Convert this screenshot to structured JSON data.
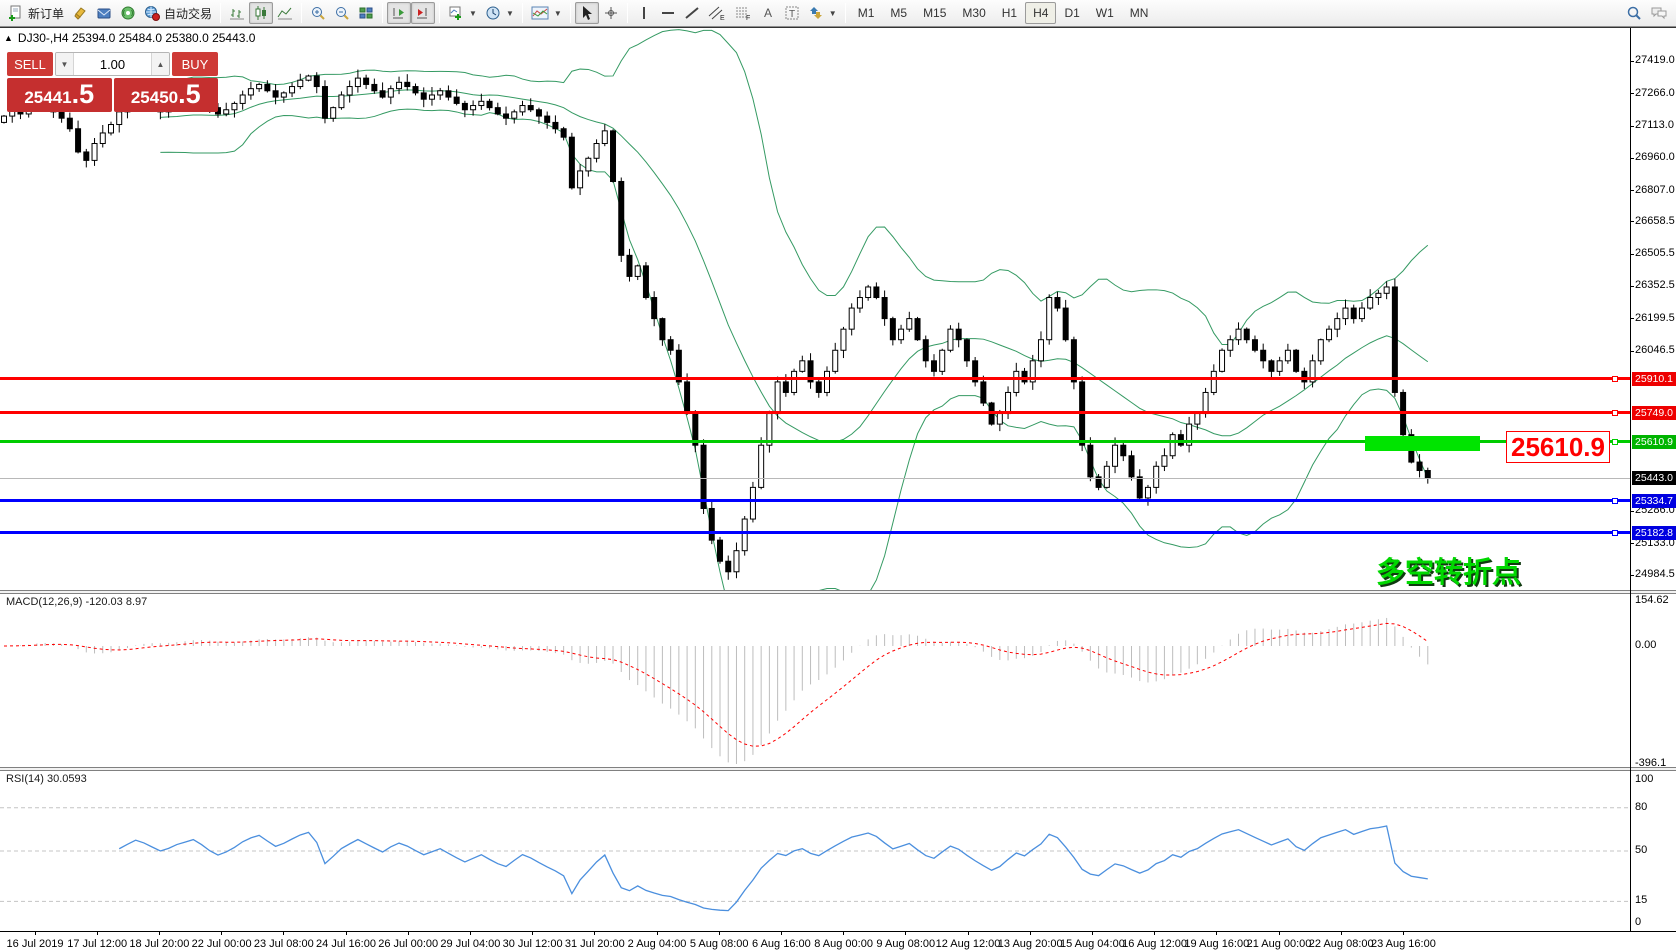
{
  "toolbar": {
    "new_order_label": "新订单",
    "autotrade_label": "自动交易",
    "timeframes": [
      "M1",
      "M5",
      "M15",
      "M30",
      "H1",
      "H4",
      "D1",
      "W1",
      "MN"
    ],
    "active_timeframe": "H4"
  },
  "chart": {
    "title": "DJ30-,H4  25394.0 25484.0 25380.0 25443.0",
    "symbol": "DJ30-",
    "period": "H4"
  },
  "trade_panel": {
    "sell_label": "SELL",
    "buy_label": "BUY",
    "lot": "1.00",
    "sell_price_main": "25441",
    "sell_price_frac": ".5",
    "buy_price_main": "25450",
    "buy_price_frac": ".5"
  },
  "annotations": {
    "level_callout": "25610.9",
    "pivot_text": "多空转折点"
  },
  "indicators": {
    "macd_header": "MACD(12,26,9) -120.03 8.97",
    "rsi_header": "RSI(14) 30.0593"
  },
  "chart_data": {
    "type": "candlestick",
    "symbol": "DJ30-",
    "period": "H4",
    "ohlc_display": {
      "open": 25394.0,
      "high": 25484.0,
      "low": 25380.0,
      "close": 25443.0
    },
    "bid": 25441.5,
    "ask": 25450.5,
    "closes": [
      27160,
      27190,
      27170,
      27210,
      27240,
      27220,
      27180,
      27150,
      27100,
      26990,
      26950,
      27030,
      27080,
      27120,
      27180,
      27220,
      27260,
      27240,
      27210,
      27180,
      27200,
      27230,
      27250,
      27270,
      27240,
      27200,
      27170,
      27190,
      27220,
      27260,
      27290,
      27310,
      27280,
      27250,
      27270,
      27300,
      27330,
      27350,
      27300,
      27150,
      27200,
      27260,
      27300,
      27340,
      27310,
      27280,
      27250,
      27290,
      27320,
      27300,
      27270,
      27240,
      27260,
      27280,
      27250,
      27220,
      27190,
      27210,
      27230,
      27200,
      27170,
      27150,
      27180,
      27210,
      27190,
      27160,
      27130,
      27100,
      27060,
      26820,
      26900,
      26960,
      27030,
      27090,
      26850,
      26500,
      26400,
      26450,
      26300,
      26200,
      26100,
      26050,
      25900,
      25750,
      25600,
      25300,
      25150,
      25050,
      25000,
      25100,
      25250,
      25400,
      25600,
      25750,
      25900,
      25850,
      25950,
      26000,
      25900,
      25850,
      25950,
      26050,
      26150,
      26250,
      26300,
      26350,
      26300,
      26200,
      26100,
      26150,
      26200,
      26100,
      26000,
      25950,
      26050,
      26150,
      26100,
      26000,
      25900,
      25800,
      25700,
      25750,
      25850,
      25950,
      25900,
      26000,
      26100,
      26300,
      26250,
      26100,
      25900,
      25600,
      25450,
      25400,
      25500,
      25600,
      25550,
      25450,
      25350,
      25400,
      25500,
      25550,
      25650,
      25600,
      25700,
      25750,
      25850,
      25950,
      26050,
      26100,
      26150,
      26100,
      26050,
      26000,
      25950,
      26000,
      26050,
      25950,
      25900,
      26000,
      26100,
      26150,
      26200,
      26250,
      26200,
      26250,
      26300,
      26320,
      26350,
      25850,
      25650,
      25520,
      25480,
      25443
    ],
    "bollinger": {
      "period": 20,
      "deviation": 2,
      "color": "#359a63"
    },
    "macd": {
      "fast": 12,
      "slow": 26,
      "signal": 9,
      "value": -120.03,
      "signal_value": 8.97,
      "axis_labels": [
        "154.62",
        "0.00",
        "-396.1"
      ]
    },
    "rsi": {
      "period": 14,
      "value": 30.0593,
      "axis_labels": [
        "100",
        "80",
        "50",
        "15",
        "0"
      ],
      "levels": [
        80,
        50,
        15
      ]
    },
    "price_axis_labels": [
      27419.0,
      27266.0,
      27113.0,
      26960.0,
      26807.0,
      26658.5,
      26505.5,
      26352.5,
      26199.5,
      26046.5,
      25286.0,
      25133.0,
      24984.5
    ],
    "price_badges": [
      {
        "price": 25910.1,
        "color": "#ee0000"
      },
      {
        "price": 25749.0,
        "color": "#ee0000"
      },
      {
        "price": 25610.9,
        "color": "#00b400"
      },
      {
        "price": 25443.0,
        "color": "#000000"
      },
      {
        "price": 25334.7,
        "color": "#0000e0"
      },
      {
        "price": 25182.8,
        "color": "#0000e0"
      }
    ],
    "horizontal_lines": [
      {
        "price": 25910.1,
        "color": "#ff0000",
        "width": 3
      },
      {
        "price": 25749.0,
        "color": "#ff0000",
        "width": 3
      },
      {
        "price": 25610.9,
        "color": "#00cc00",
        "width": 3
      },
      {
        "price": 25334.7,
        "color": "#0000ff",
        "width": 3
      },
      {
        "price": 25182.8,
        "color": "#0000ff",
        "width": 3
      }
    ],
    "current_price_line": {
      "price": 25443.0,
      "color": "#b8b8b8",
      "width": 1
    },
    "highlight_rect": {
      "price_top": 25640,
      "price_bottom": 25565,
      "color": "#00e400"
    },
    "time_axis_labels": [
      "16 Jul 2019",
      "17 Jul 12:00",
      "18 Jul 20:00",
      "22 Jul 00:00",
      "23 Jul 08:00",
      "24 Jul 16:00",
      "26 Jul 00:00",
      "29 Jul 04:00",
      "30 Jul 12:00",
      "31 Jul 20:00",
      "2 Aug 04:00",
      "5 Aug 08:00",
      "6 Aug 16:00",
      "8 Aug 00:00",
      "9 Aug 08:00",
      "12 Aug 12:00",
      "13 Aug 20:00",
      "15 Aug 04:00",
      "16 Aug 12:00",
      "19 Aug 16:00",
      "21 Aug 00:00",
      "22 Aug 08:00",
      "23 Aug 16:00"
    ]
  }
}
